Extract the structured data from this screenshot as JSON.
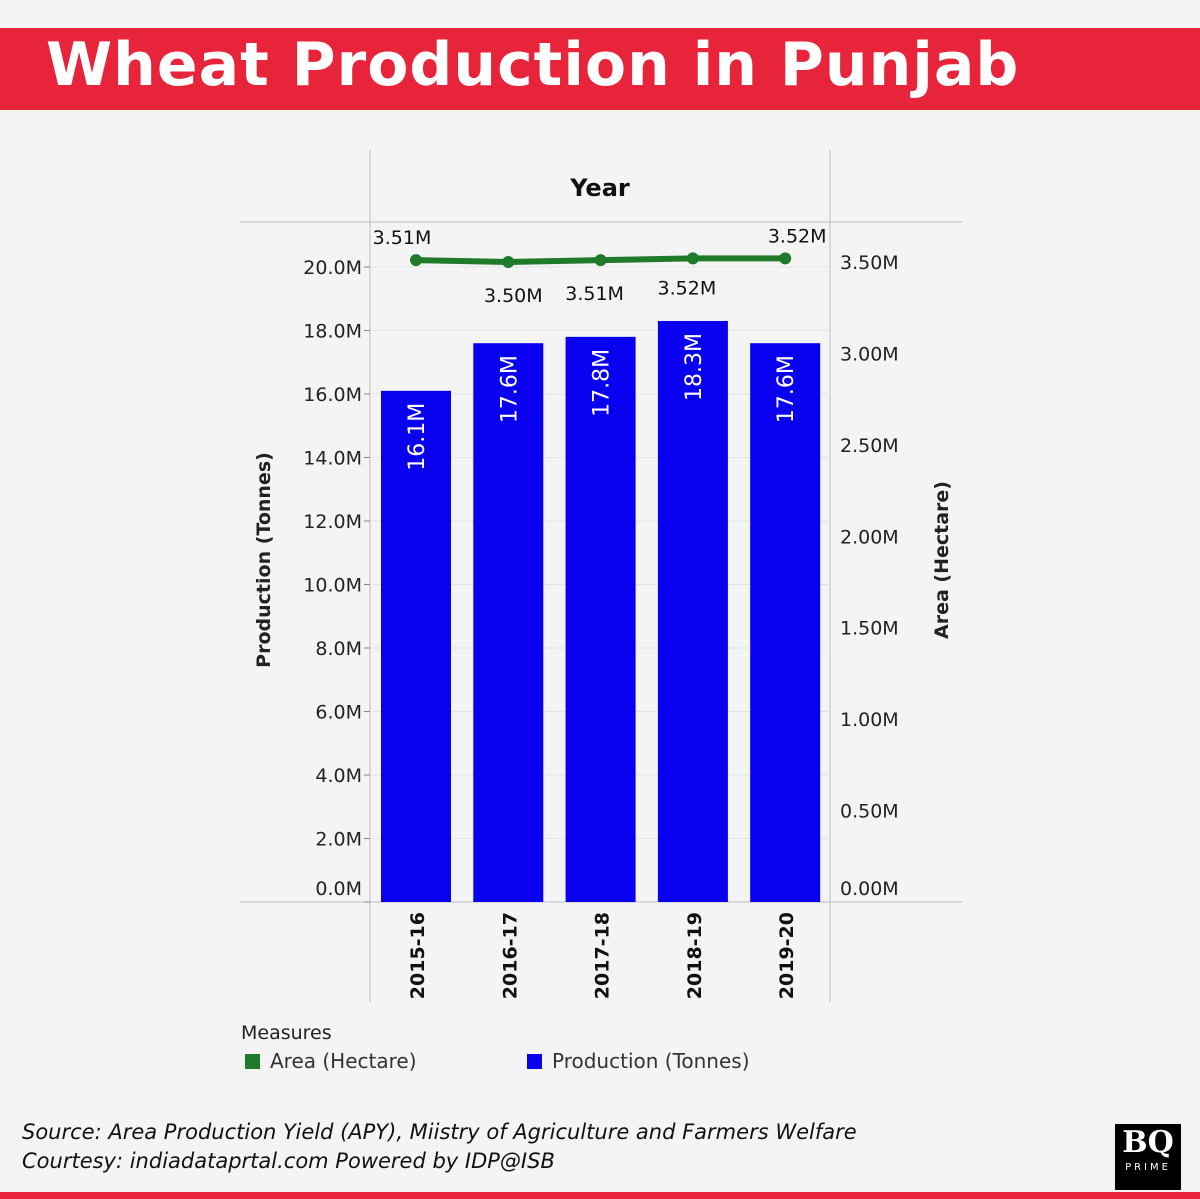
{
  "header": {
    "title": "Wheat Production in Punjab"
  },
  "chart_data": {
    "type": "bar",
    "top_axis_label": "Year",
    "categories": [
      "2015-16",
      "2016-17",
      "2017-18",
      "2018-19",
      "2019-20"
    ],
    "series": [
      {
        "name": "Production (Tonnes)",
        "type": "bar",
        "axis": "left",
        "values": [
          16.1,
          17.6,
          17.8,
          18.3,
          17.6
        ],
        "labels": [
          "16.1M",
          "17.6M",
          "17.8M",
          "18.3M",
          "17.6M"
        ],
        "color": "#0a00f0"
      },
      {
        "name": "Area (Hectare)",
        "type": "line",
        "axis": "right",
        "values": [
          3.51,
          3.5,
          3.51,
          3.52,
          3.52
        ],
        "labels": [
          "3.51M",
          "3.50M",
          "3.51M",
          "3.52M",
          "3.52M"
        ],
        "color": "#1f7a2a"
      }
    ],
    "y_left": {
      "label": "Production (Tonnes)",
      "unit": "M",
      "range": [
        0,
        20
      ],
      "ticks": [
        "0.0M",
        "2.0M",
        "4.0M",
        "6.0M",
        "8.0M",
        "10.0M",
        "12.0M",
        "14.0M",
        "16.0M",
        "18.0M",
        "20.0M"
      ]
    },
    "y_right": {
      "label": "Area (Hectare)",
      "unit": "M",
      "range": [
        0,
        3.5
      ],
      "ticks": [
        "0.00M",
        "0.50M",
        "1.00M",
        "1.50M",
        "2.00M",
        "2.50M",
        "3.00M",
        "3.50M"
      ]
    },
    "grid": true,
    "legend": {
      "title": "Measures",
      "position": "bottom-left",
      "items": [
        "Area (Hectare)",
        "Production (Tonnes)"
      ]
    }
  },
  "footer": {
    "source": "Source: Area Production Yield (APY), Miistry of Agriculture and Farmers Welfare",
    "courtesy": "Courtesy: indiadataprtal.com Powered by IDP@ISB",
    "logo_text": "BQ",
    "logo_sub": "PRIME"
  }
}
